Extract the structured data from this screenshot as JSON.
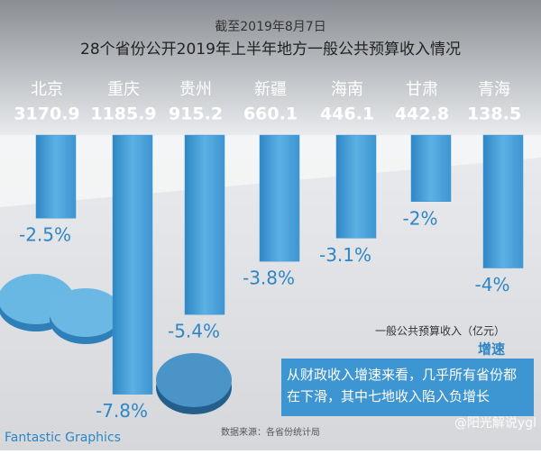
{
  "chart_data": {
    "type": "bar",
    "subtitle": "截至2019年8月7日",
    "title": "28个省份公开2019年上半年地方一般公共预算收入情况",
    "categories": [
      "北京",
      "重庆",
      "贵州",
      "新疆",
      "海南",
      "甘肃",
      "青海"
    ],
    "series": [
      {
        "name": "一般公共预算收入（亿元）",
        "values": [
          3170.9,
          1185.9,
          915.2,
          660.1,
          446.1,
          442.8,
          138.5
        ]
      },
      {
        "name": "增速",
        "color": "#3d95d2",
        "values": [
          -2.5,
          -7.8,
          -5.4,
          -3.8,
          -3.1,
          -2,
          -4
        ],
        "value_labels": [
          "-2.5%",
          "-7.8%",
          "-5.4%",
          "-3.8%",
          "-3.1%",
          "-2%",
          "-4%"
        ]
      }
    ],
    "ylim": [
      -8,
      0
    ],
    "annotation": "从财政收入增速来看，几乎所有省份都在下滑，其中七地收入陷入负增长",
    "source": "数据来源：各省份统计局",
    "brand": "Fantastic Graphics",
    "watermark": "@阳光解说ygl"
  }
}
